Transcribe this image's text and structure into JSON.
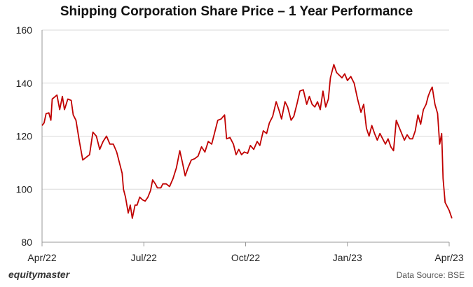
{
  "chart_data": {
    "type": "line",
    "title": "Shipping Corporation Share Price – 1 Year Performance",
    "xlabel": "",
    "ylabel": "",
    "ylim": [
      80,
      160
    ],
    "yticks": [
      80,
      100,
      120,
      140,
      160
    ],
    "xticks": [
      "Apr/22",
      "Jul/22",
      "Oct/22",
      "Jan/23",
      "Apr/23"
    ],
    "grid": "horizontal",
    "colors": {
      "line": "#c00000",
      "grid": "#d9d9d9",
      "axis": "#999999"
    },
    "series": [
      {
        "values": [
          [
            0.0,
            124
          ],
          [
            0.3,
            125
          ],
          [
            0.6,
            128.5
          ],
          [
            1.0,
            128.8
          ],
          [
            1.3,
            126
          ],
          [
            1.5,
            134
          ],
          [
            2.2,
            135.5
          ],
          [
            2.6,
            130
          ],
          [
            3.0,
            135
          ],
          [
            3.3,
            130
          ],
          [
            3.8,
            134
          ],
          [
            4.3,
            133.5
          ],
          [
            4.6,
            128
          ],
          [
            5.0,
            126
          ],
          [
            5.5,
            118
          ],
          [
            6.0,
            111
          ],
          [
            6.5,
            112
          ],
          [
            7.0,
            113
          ],
          [
            7.5,
            121.5
          ],
          [
            8.0,
            120
          ],
          [
            8.5,
            115
          ],
          [
            9.0,
            118
          ],
          [
            9.5,
            120
          ],
          [
            10.0,
            117
          ],
          [
            10.5,
            117
          ],
          [
            11.0,
            114
          ],
          [
            11.5,
            109
          ],
          [
            11.8,
            106
          ],
          [
            12.0,
            100
          ],
          [
            12.3,
            97
          ],
          [
            12.7,
            91
          ],
          [
            13.0,
            94
          ],
          [
            13.3,
            89
          ],
          [
            13.7,
            94
          ],
          [
            14.0,
            94
          ],
          [
            14.4,
            97
          ],
          [
            14.8,
            96
          ],
          [
            15.2,
            95.5
          ],
          [
            15.6,
            97
          ],
          [
            16.0,
            99.5
          ],
          [
            16.3,
            103.5
          ],
          [
            16.7,
            102
          ],
          [
            17.0,
            100.5
          ],
          [
            17.5,
            100.5
          ],
          [
            17.8,
            102
          ],
          [
            18.3,
            102
          ],
          [
            18.8,
            101
          ],
          [
            19.3,
            104
          ],
          [
            19.8,
            108
          ],
          [
            20.3,
            114.5
          ],
          [
            20.7,
            110
          ],
          [
            21.1,
            105
          ],
          [
            21.5,
            108
          ],
          [
            22.0,
            111
          ],
          [
            22.5,
            111.5
          ],
          [
            23.0,
            112.5
          ],
          [
            23.5,
            116
          ],
          [
            24.0,
            114
          ],
          [
            24.5,
            118
          ],
          [
            25.0,
            117
          ],
          [
            25.4,
            121
          ],
          [
            25.9,
            126
          ],
          [
            26.4,
            126.5
          ],
          [
            26.9,
            128
          ],
          [
            27.2,
            119
          ],
          [
            27.7,
            119.5
          ],
          [
            28.2,
            117
          ],
          [
            28.6,
            113
          ],
          [
            29.0,
            115
          ],
          [
            29.4,
            113
          ],
          [
            29.8,
            114
          ],
          [
            30.3,
            113.5
          ],
          [
            30.7,
            116.5
          ],
          [
            31.2,
            115
          ],
          [
            31.7,
            118
          ],
          [
            32.1,
            116.5
          ],
          [
            32.6,
            122
          ],
          [
            33.1,
            121
          ],
          [
            33.5,
            125
          ],
          [
            34.0,
            127.5
          ],
          [
            34.5,
            133
          ],
          [
            34.9,
            130
          ],
          [
            35.3,
            126.5
          ],
          [
            35.8,
            133
          ],
          [
            36.2,
            131
          ],
          [
            36.7,
            126
          ],
          [
            37.1,
            127.5
          ],
          [
            37.6,
            132.5
          ],
          [
            38.0,
            137
          ],
          [
            38.5,
            137.5
          ],
          [
            39.0,
            132
          ],
          [
            39.4,
            135
          ],
          [
            39.8,
            132
          ],
          [
            40.2,
            131
          ],
          [
            40.6,
            133
          ],
          [
            41.0,
            130
          ],
          [
            41.4,
            137
          ],
          [
            41.8,
            131
          ],
          [
            42.2,
            134
          ],
          [
            42.5,
            142
          ],
          [
            43.0,
            147
          ],
          [
            43.4,
            144
          ],
          [
            43.8,
            143
          ],
          [
            44.2,
            142
          ],
          [
            44.6,
            143.5
          ],
          [
            45.0,
            141
          ],
          [
            45.5,
            142.5
          ],
          [
            46.0,
            140
          ],
          [
            46.5,
            134
          ],
          [
            47.0,
            129
          ],
          [
            47.4,
            132
          ],
          [
            47.8,
            123
          ],
          [
            48.2,
            120
          ],
          [
            48.6,
            124
          ],
          [
            49.0,
            121
          ],
          [
            49.4,
            118.5
          ],
          [
            49.8,
            121
          ],
          [
            50.2,
            119
          ],
          [
            50.6,
            117
          ],
          [
            51.0,
            119
          ],
          [
            51.4,
            116
          ],
          [
            51.8,
            114.5
          ],
          [
            52.2,
            126
          ],
          [
            52.6,
            123.5
          ],
          [
            53.0,
            121
          ],
          [
            53.4,
            118.5
          ],
          [
            53.8,
            120.5
          ],
          [
            54.2,
            119
          ],
          [
            54.6,
            119
          ],
          [
            55.0,
            122
          ],
          [
            55.4,
            128
          ],
          [
            55.8,
            124.5
          ],
          [
            56.2,
            130
          ],
          [
            56.6,
            132
          ],
          [
            56.9,
            135
          ],
          [
            57.2,
            137
          ],
          [
            57.5,
            138.5
          ],
          [
            57.9,
            132
          ],
          [
            58.3,
            128.5
          ],
          [
            58.6,
            117
          ],
          [
            58.9,
            121
          ],
          [
            59.1,
            104
          ],
          [
            59.4,
            95
          ],
          [
            60.0,
            92
          ],
          [
            60.4,
            89
          ]
        ]
      }
    ]
  },
  "footer": {
    "brand": "equitymaster",
    "source": "Data Source: BSE"
  }
}
